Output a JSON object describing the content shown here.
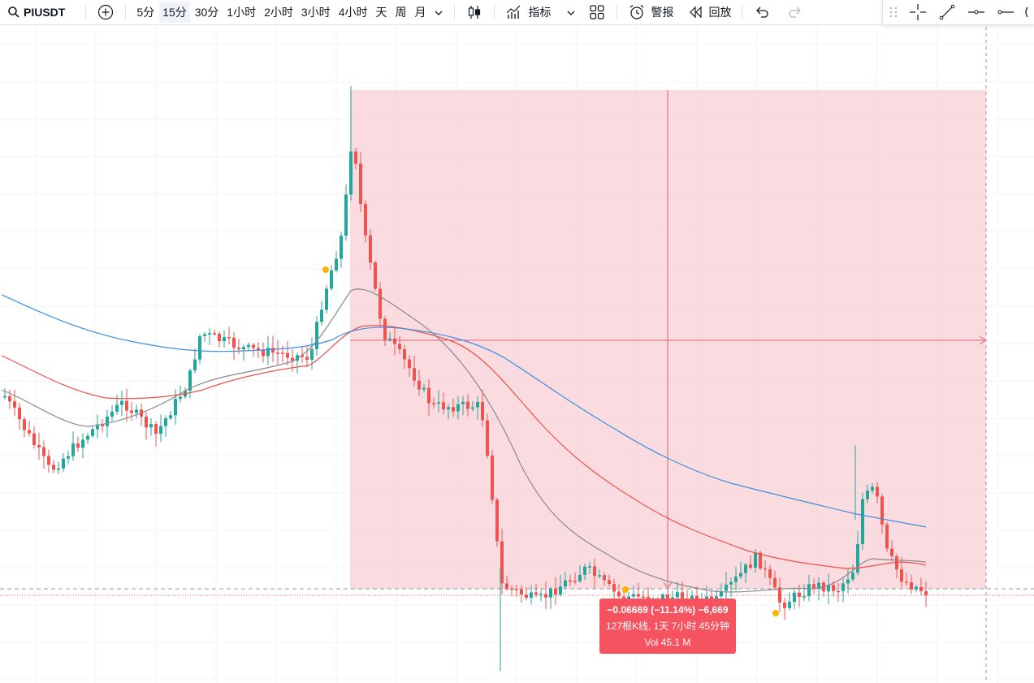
{
  "toolbar": {
    "symbol": "PIUSDT",
    "intervals": [
      "5分",
      "15分",
      "30分",
      "1小时",
      "2小时",
      "3小时",
      "4小时",
      "天",
      "周",
      "月"
    ],
    "active_interval": "15分",
    "indicators_label": "指标",
    "alert_label": "警报",
    "replay_label": "回放"
  },
  "measure": {
    "line1": "−0.06669 (−11.14%) −6,669",
    "line2": "127根K线, 1天 7小时 45分钟",
    "line3": "Vol 45.1 M"
  },
  "colors": {
    "up": "#26a69a",
    "down": "#ef5350",
    "measure_fill": "#f7c5cc",
    "ma_short": "#8a8a8a",
    "ma_mid": "#f0504a",
    "ma_long": "#3d8fe0",
    "marker": "#ffb300"
  }
}
